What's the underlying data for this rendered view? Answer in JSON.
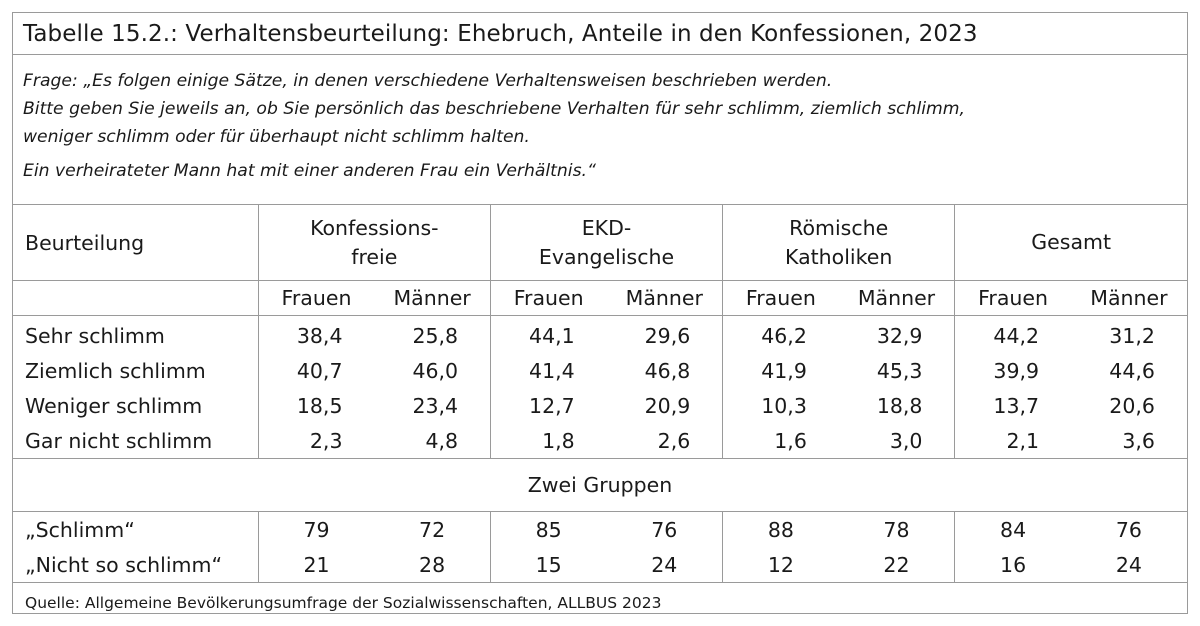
{
  "title": "Tabelle 15.2.: Verhaltensbeurteilung: Ehebruch, Anteile in den Konfessionen, 2023",
  "frage": {
    "line1": "Frage: „Es folgen einige Sätze, in denen verschiedene Verhaltensweisen beschrieben werden.",
    "line2": "Bitte geben Sie jeweils an, ob Sie persönlich das beschriebene Verhalten für sehr schlimm, ziemlich schlimm,",
    "line3": "weniger schlimm oder für überhaupt nicht schlimm halten.",
    "line4": "Ein verheirateter Mann hat mit einer anderen Frau ein Verhältnis.“"
  },
  "header": {
    "row_label": "Beurteilung",
    "groups": [
      {
        "line1": "Konfessions-",
        "line2": "freie"
      },
      {
        "line1": "EKD-",
        "line2": "Evangelische"
      },
      {
        "line1": "Römische",
        "line2": "Katholiken"
      },
      {
        "line1": "Gesamt",
        "line2": ""
      }
    ],
    "sub": {
      "women": "Frauen",
      "men": "Männer"
    }
  },
  "rows": [
    {
      "label": "Sehr schlimm",
      "values": [
        "38,4",
        "25,8",
        "44,1",
        "29,6",
        "46,2",
        "32,9",
        "44,2",
        "31,2"
      ]
    },
    {
      "label": "Ziemlich schlimm",
      "values": [
        "40,7",
        "46,0",
        "41,4",
        "46,8",
        "41,9",
        "45,3",
        "39,9",
        "44,6"
      ]
    },
    {
      "label": "Weniger schlimm",
      "values": [
        "18,5",
        "23,4",
        "12,7",
        "20,9",
        "10,3",
        "18,8",
        "13,7",
        "20,6"
      ]
    },
    {
      "label": "Gar nicht schlimm",
      "values": [
        "2,3",
        "4,8",
        "1,8",
        "2,6",
        "1,6",
        "3,0",
        "2,1",
        "3,6"
      ]
    }
  ],
  "two_groups": {
    "heading": "Zwei Gruppen",
    "rows": [
      {
        "label": "„Schlimm“",
        "values": [
          "79",
          "72",
          "85",
          "76",
          "88",
          "78",
          "84",
          "76"
        ]
      },
      {
        "label": "„Nicht so schlimm“",
        "values": [
          "21",
          "28",
          "15",
          "24",
          "12",
          "22",
          "16",
          "24"
        ]
      }
    ]
  },
  "source": "Quelle: Allgemeine Bevölkerungsumfrage der Sozialwissenschaften, ALLBUS 2023"
}
